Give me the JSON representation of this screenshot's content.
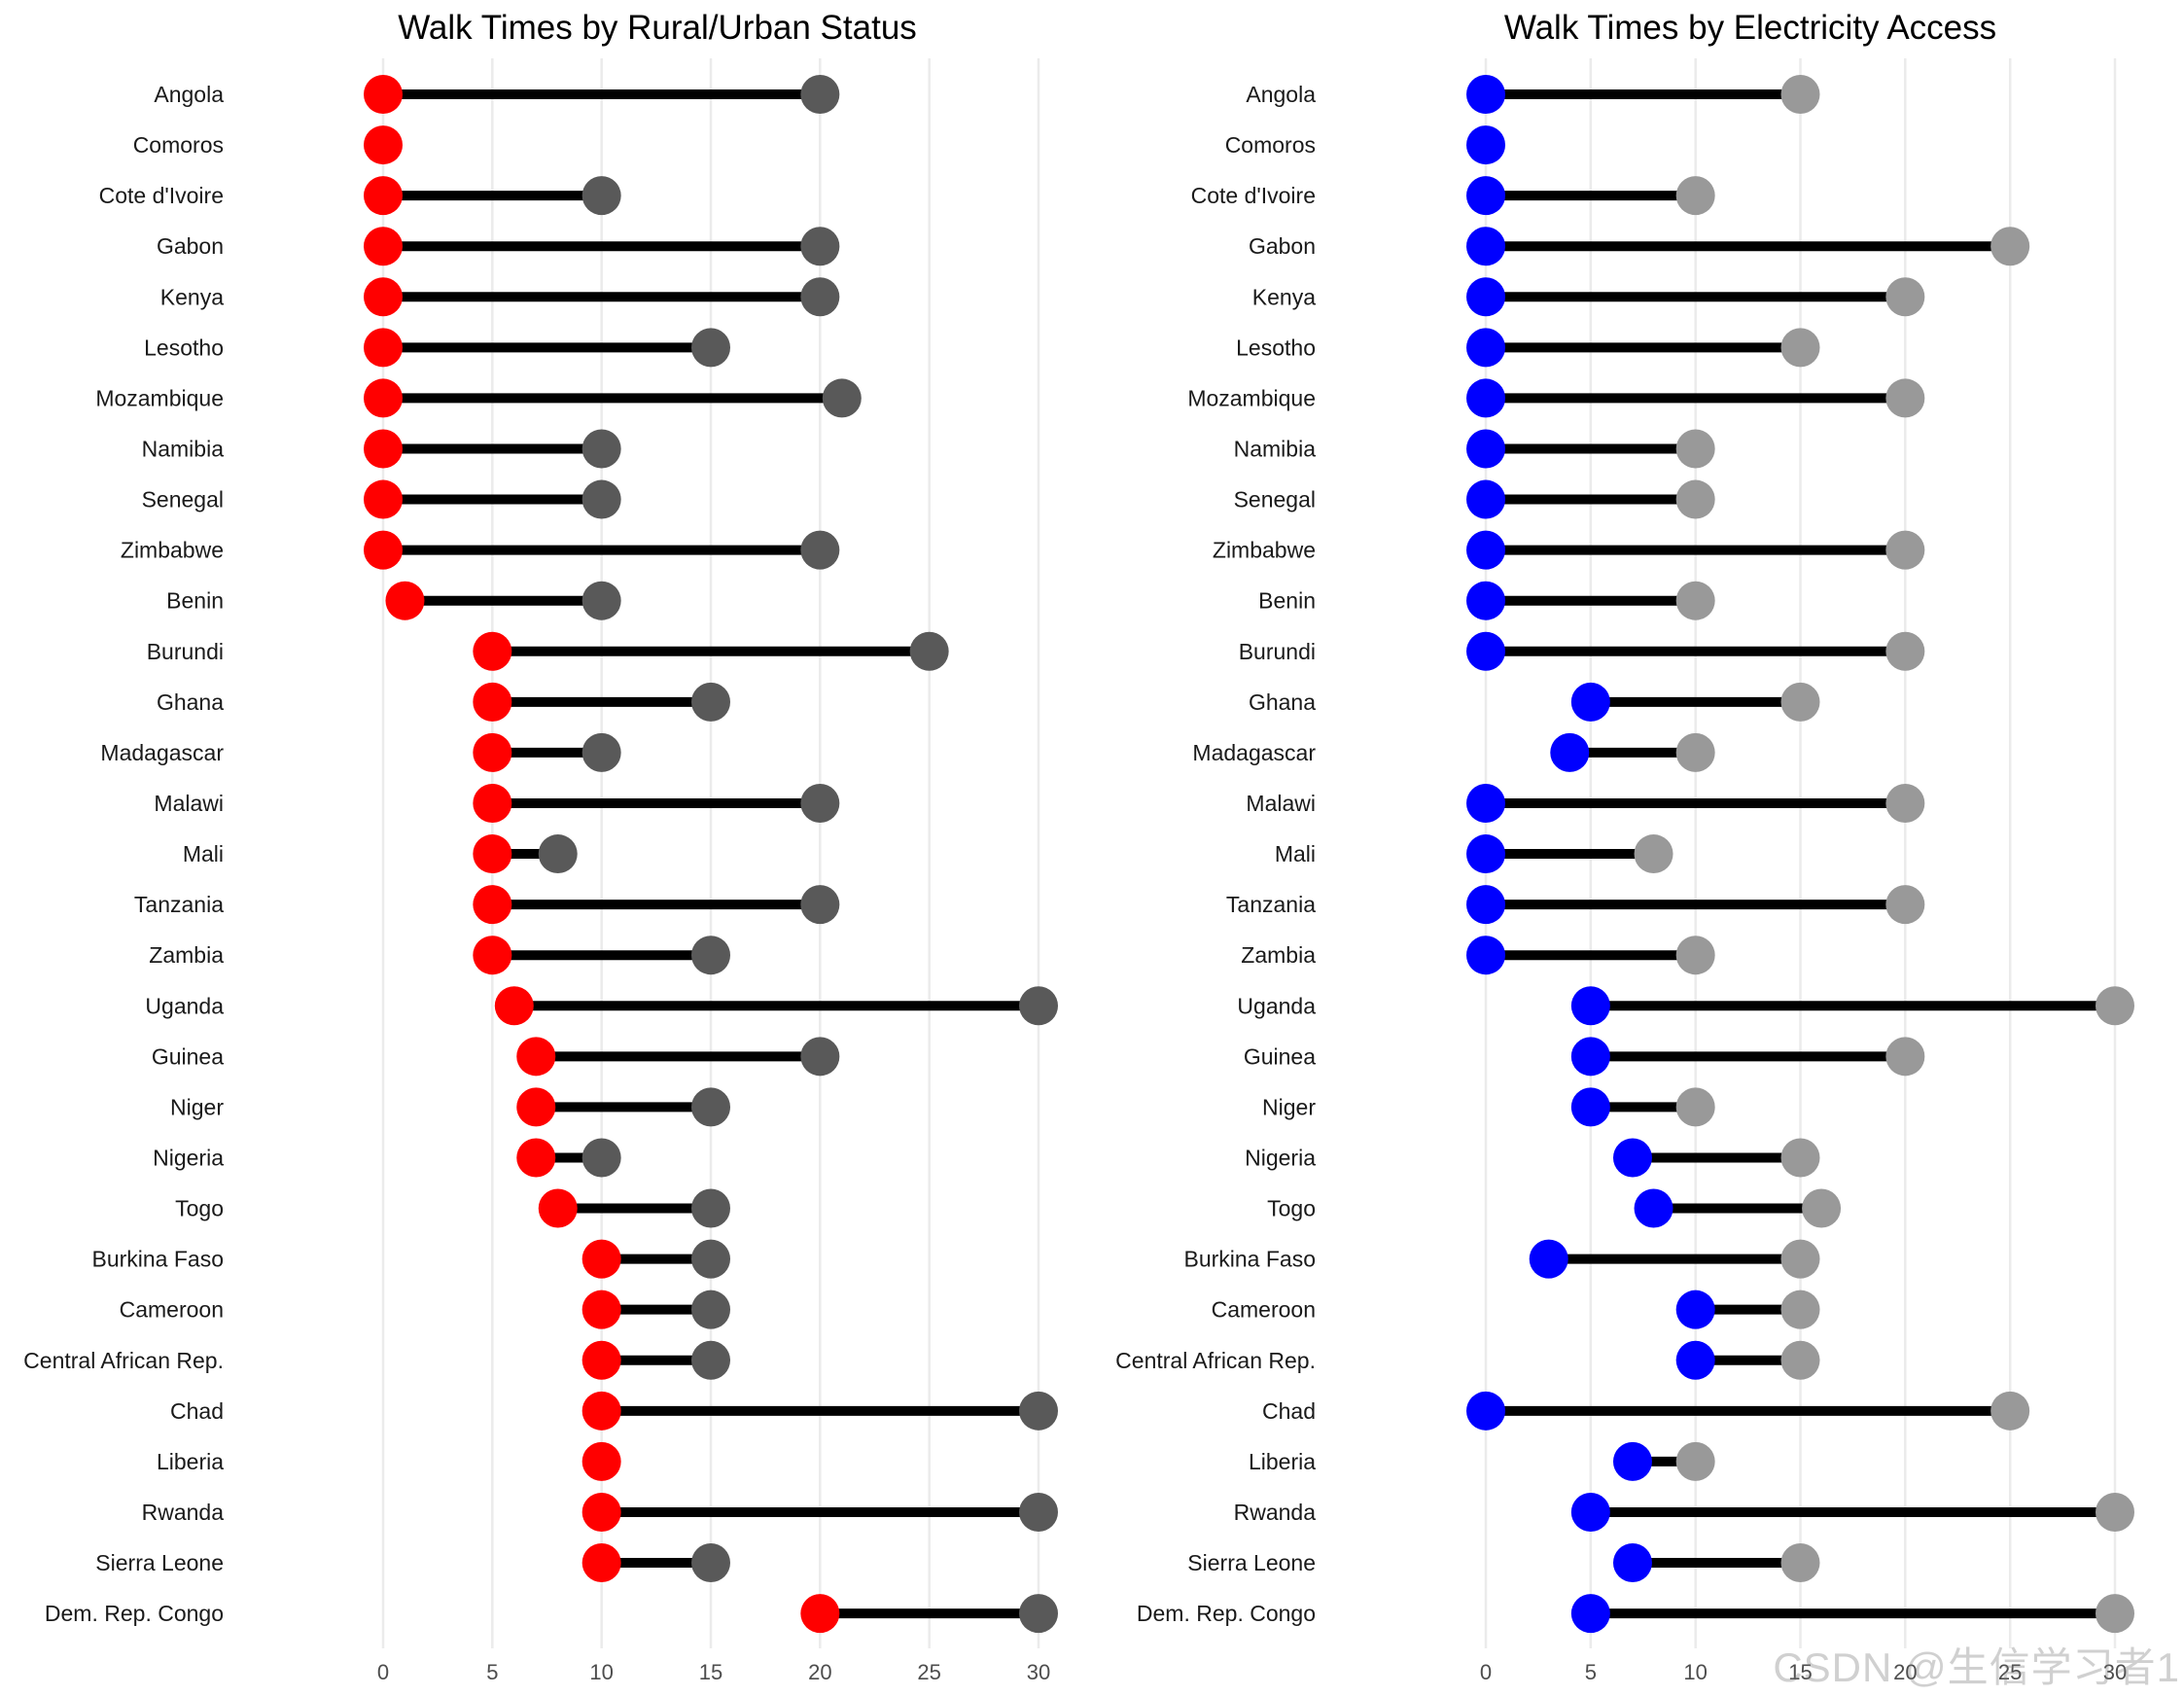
{
  "watermark": "CSDN @生信学习者1",
  "colors": {
    "dumbbell_line": "#000000",
    "grid": "#ebebeb"
  },
  "chart_data": [
    {
      "type": "dumbbell",
      "title": "Walk Times by Rural/Urban Status",
      "xlabel": "",
      "ylabel": "",
      "xlim": [
        0,
        30
      ],
      "xticks": [
        0,
        5,
        10,
        15,
        20,
        25,
        30
      ],
      "start_color": "#ff0000",
      "end_color": "#595959",
      "categories": [
        "Angola",
        "Comoros",
        "Cote d'Ivoire",
        "Gabon",
        "Kenya",
        "Lesotho",
        "Mozambique",
        "Namibia",
        "Senegal",
        "Zimbabwe",
        "Benin",
        "Burundi",
        "Ghana",
        "Madagascar",
        "Malawi",
        "Mali",
        "Tanzania",
        "Zambia",
        "Uganda",
        "Guinea",
        "Niger",
        "Nigeria",
        "Togo",
        "Burkina Faso",
        "Cameroon",
        "Central African Rep.",
        "Chad",
        "Liberia",
        "Rwanda",
        "Sierra Leone",
        "Dem. Rep. Congo"
      ],
      "series": [
        {
          "name": "start",
          "values": [
            0,
            0,
            0,
            0,
            0,
            0,
            0,
            0,
            0,
            0,
            1,
            5,
            5,
            5,
            5,
            5,
            5,
            5,
            6,
            7,
            7,
            7,
            8,
            10,
            10,
            10,
            10,
            10,
            10,
            10,
            20
          ]
        },
        {
          "name": "end",
          "values": [
            20,
            0,
            10,
            20,
            20,
            15,
            21,
            10,
            10,
            20,
            10,
            25,
            15,
            10,
            20,
            8,
            20,
            15,
            30,
            20,
            15,
            10,
            15,
            15,
            15,
            15,
            30,
            10,
            30,
            15,
            30
          ]
        }
      ]
    },
    {
      "type": "dumbbell",
      "title": "Walk Times by Electricity Access",
      "xlabel": "",
      "ylabel": "",
      "xlim": [
        0,
        30
      ],
      "xticks": [
        0,
        5,
        10,
        15,
        20,
        25,
        30
      ],
      "start_color": "#0000ff",
      "end_color": "#999999",
      "categories": [
        "Angola",
        "Comoros",
        "Cote d'Ivoire",
        "Gabon",
        "Kenya",
        "Lesotho",
        "Mozambique",
        "Namibia",
        "Senegal",
        "Zimbabwe",
        "Benin",
        "Burundi",
        "Ghana",
        "Madagascar",
        "Malawi",
        "Mali",
        "Tanzania",
        "Zambia",
        "Uganda",
        "Guinea",
        "Niger",
        "Nigeria",
        "Togo",
        "Burkina Faso",
        "Cameroon",
        "Central African Rep.",
        "Chad",
        "Liberia",
        "Rwanda",
        "Sierra Leone",
        "Dem. Rep. Congo"
      ],
      "series": [
        {
          "name": "start",
          "values": [
            0,
            0,
            0,
            0,
            0,
            0,
            0,
            0,
            0,
            0,
            0,
            0,
            5,
            4,
            0,
            0,
            0,
            0,
            5,
            5,
            5,
            7,
            8,
            3,
            10,
            10,
            0,
            7,
            5,
            7,
            5
          ]
        },
        {
          "name": "end",
          "values": [
            15,
            0,
            10,
            25,
            20,
            15,
            20,
            10,
            10,
            20,
            10,
            20,
            15,
            10,
            20,
            8,
            20,
            10,
            30,
            20,
            10,
            15,
            16,
            15,
            15,
            15,
            25,
            10,
            30,
            15,
            30
          ]
        }
      ]
    }
  ]
}
